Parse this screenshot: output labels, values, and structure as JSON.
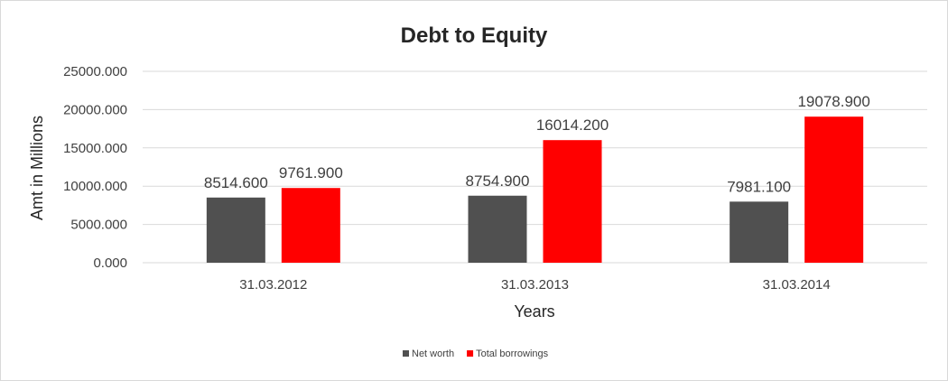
{
  "chart_data": {
    "type": "bar",
    "title": "Debt to Equity",
    "xlabel": "Years",
    "ylabel": "Amt in Millions",
    "categories": [
      "31.03.2012",
      "31.03.2013",
      "31.03.2014"
    ],
    "series": [
      {
        "name": "Net worth",
        "color": "#505050",
        "values": [
          8514.6,
          8754.9,
          7981.1
        ],
        "labels": [
          "8514.600",
          "8754.900",
          "7981.100"
        ]
      },
      {
        "name": "Total borrowings",
        "color": "#ff0000",
        "values": [
          9761.9,
          16014.2,
          19078.9
        ],
        "labels": [
          "9761.900",
          "16014.200",
          "19078.900"
        ]
      }
    ],
    "ylim": [
      0,
      25000
    ],
    "yticks": [
      0,
      5000,
      10000,
      15000,
      20000,
      25000
    ],
    "ytick_labels": [
      "0.000",
      "5000.000",
      "10000.000",
      "15000.000",
      "20000.000",
      "25000.000"
    ],
    "grid": true,
    "legend": "bottom"
  }
}
